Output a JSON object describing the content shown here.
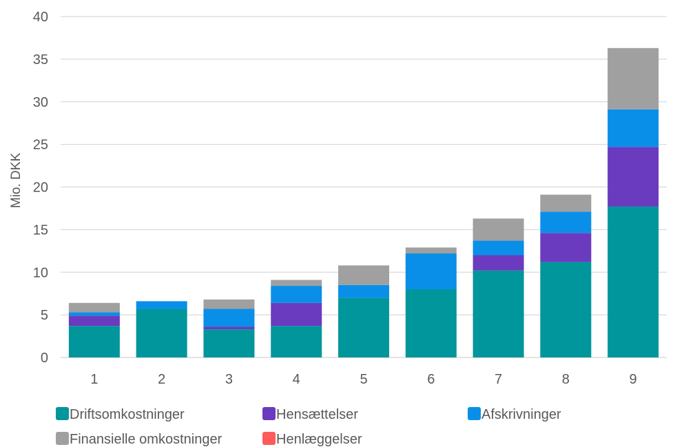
{
  "chart_data": {
    "type": "bar",
    "stacked": true,
    "title": "",
    "xlabel": "",
    "ylabel": "Mio. DKK",
    "ylim": [
      0,
      40
    ],
    "yticks": [
      0,
      5,
      10,
      15,
      20,
      25,
      30,
      35,
      40
    ],
    "grid": true,
    "legend_position": "bottom",
    "categories": [
      "1",
      "2",
      "3",
      "4",
      "5",
      "6",
      "7",
      "8",
      "9"
    ],
    "series": [
      {
        "name": "Driftsomkostninger",
        "color": "#00969C",
        "values": [
          3.7,
          5.7,
          3.3,
          3.7,
          7.0,
          8.0,
          10.2,
          11.2,
          17.7
        ]
      },
      {
        "name": "Hensættelser",
        "color": "#6A3BBF",
        "values": [
          1.2,
          0.0,
          0.3,
          2.7,
          0.0,
          0.0,
          1.8,
          3.4,
          7.0
        ]
      },
      {
        "name": "Afskrivninger",
        "color": "#0A8FE8",
        "values": [
          0.4,
          0.9,
          2.1,
          2.0,
          1.5,
          4.2,
          1.7,
          2.5,
          4.4
        ]
      },
      {
        "name": "Finansielle omkostninger",
        "color": "#A0A0A0",
        "values": [
          1.1,
          0.0,
          1.1,
          0.7,
          2.3,
          0.7,
          2.6,
          2.0,
          7.2
        ]
      },
      {
        "name": "Henlæggelser",
        "color": "#FF5B5B",
        "values": [
          0,
          0,
          0,
          0,
          0,
          0,
          0,
          0,
          0
        ]
      }
    ]
  }
}
